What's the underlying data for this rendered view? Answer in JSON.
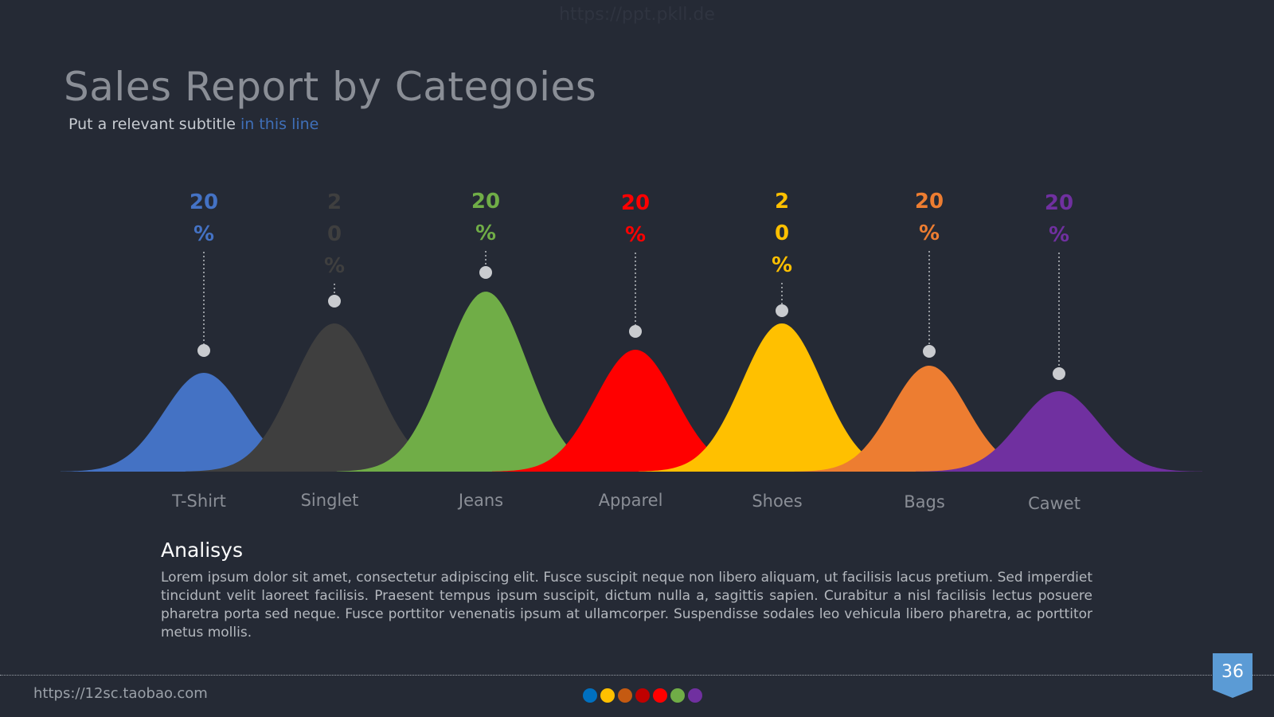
{
  "watermark": "https://ppt.pkll.de",
  "title": "Sales Report by Categoies",
  "subtitle": {
    "prefix": "Put a relevant subtitle ",
    "highlight": "in this line"
  },
  "chart_data": {
    "type": "area",
    "title": "Sales Report by Categoies",
    "xlabel": "",
    "ylabel": "",
    "grid": false,
    "categories": [
      "T-Shirt",
      "Singlet",
      "Jeans",
      "Apparel",
      "Shoes",
      "Bags",
      "Cawet"
    ],
    "values": [
      20,
      20,
      20,
      20,
      20,
      20,
      20
    ],
    "value_labels": [
      "20%",
      "20%",
      "20%",
      "20%",
      "20%",
      "20%",
      "20%"
    ],
    "colors": [
      "#4472c4",
      "#3f3f3f",
      "#70ad47",
      "#ff0000",
      "#ffc000",
      "#ed7d31",
      "#7030a0"
    ]
  },
  "analysis": {
    "title": "Analisys",
    "body": "Lorem ipsum dolor sit amet, consectetur adipiscing elit. Fusce suscipit neque non libero aliquam, ut facilisis lacus pretium. Sed imperdiet tincidunt velit laoreet facilisis. Praesent tempus ipsum suscipit, dictum nulla a, sagittis sapien. Curabitur a nisl facilisis lectus posuere pharetra porta sed neque. Fusce porttitor venenatis ipsum at ullamcorper. Suspendisse sodales leo vehicula libero pharetra, ac porttitor metus mollis."
  },
  "footer": {
    "url": "https://12sc.taobao.com",
    "page_number": "36",
    "dot_colors": [
      "#0070c0",
      "#ffc000",
      "#c55a11",
      "#c00000",
      "#ff0000",
      "#70ad47",
      "#7030a0"
    ],
    "badge_color": "#5b9bd5"
  }
}
